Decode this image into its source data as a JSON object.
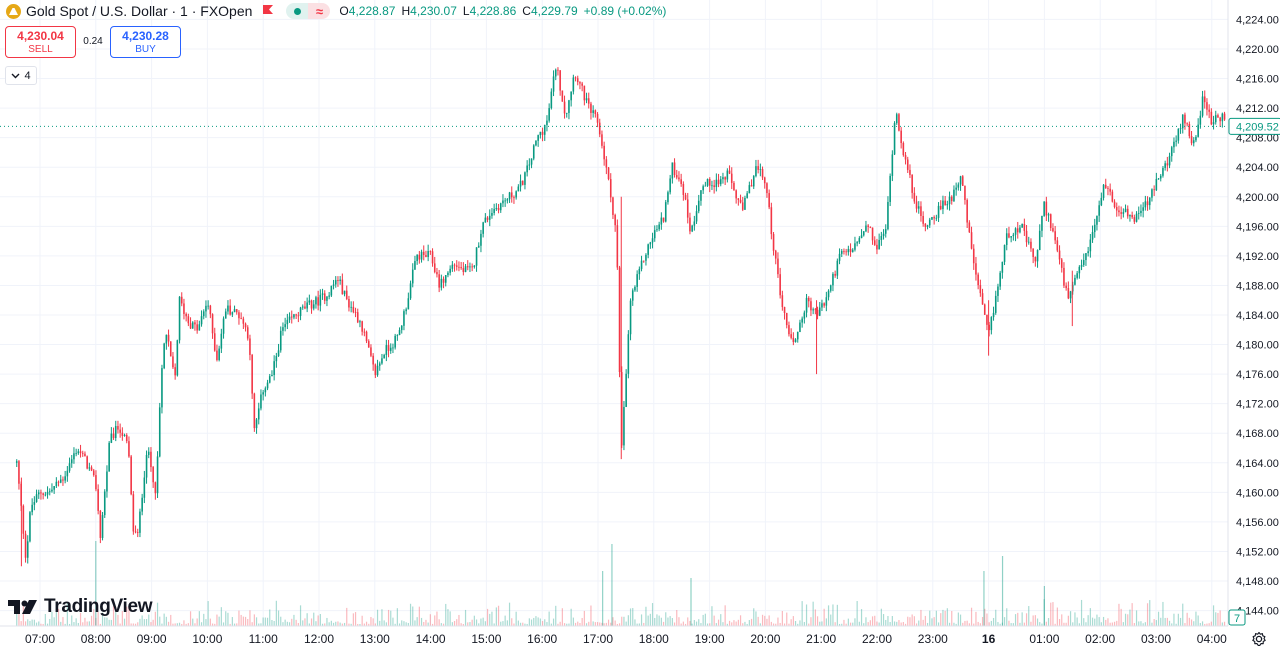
{
  "header": {
    "symbol_title": "Gold Spot / U.S. Dollar · 1 · FXOpen",
    "ohlc": {
      "o_label": "O",
      "o_value": "4,228.87",
      "h_label": "H",
      "h_value": "4,230.07",
      "l_label": "L",
      "l_value": "4,228.86",
      "c_label": "C",
      "c_value": "4,229.79",
      "change": "+0.89 (+0.02%)"
    },
    "icons": [
      "gold-coin-icon",
      "flag-icon",
      "market-open-dot-icon",
      "delayed-data-wave-icon"
    ]
  },
  "trade": {
    "sell_price": "4,230.04",
    "sell_label": "SELL",
    "spread": "0.24",
    "buy_price": "4,230.28",
    "buy_label": "BUY"
  },
  "indicators_toggle": {
    "count": "4"
  },
  "branding": {
    "logo_text": "TradingView"
  },
  "colors": {
    "up": "#089981",
    "down": "#f23645",
    "grid": "#f0f3fa",
    "axis_text": "#131722",
    "price_tag": "#089981"
  },
  "chart_data": {
    "type": "candlestick",
    "title": "Gold Spot / U.S. Dollar · 1 · FXOpen",
    "xlabel": "",
    "ylabel": "",
    "x_ticks": [
      "07:00",
      "08:00",
      "09:00",
      "10:00",
      "11:00",
      "12:00",
      "13:00",
      "14:00",
      "15:00",
      "16:00",
      "17:00",
      "18:00",
      "19:00",
      "20:00",
      "21:00",
      "22:00",
      "23:00",
      "16",
      "01:00",
      "02:00",
      "03:00",
      "04:00"
    ],
    "y_ticks": [
      "4,144.00",
      "4,148.00",
      "4,152.00",
      "4,156.00",
      "4,160.00",
      "4,164.00",
      "4,168.00",
      "4,172.00",
      "4,176.00",
      "4,180.00",
      "4,184.00",
      "4,188.00",
      "4,192.00",
      "4,196.00",
      "4,200.00",
      "4,204.00",
      "4,208.00",
      "4,212.00",
      "4,216.00",
      "4,220.00",
      "4,224.00"
    ],
    "ylim": [
      4143.0,
      4225.0
    ],
    "grid": true,
    "last_price_label": "4,209.52",
    "last_price": 4209.52,
    "volume_badge": "7",
    "series_path": [
      [
        "06:35",
        4164
      ],
      [
        "06:45",
        4151
      ],
      [
        "06:50",
        4158
      ],
      [
        "07:00",
        4160
      ],
      [
        "07:10",
        4160
      ],
      [
        "07:25",
        4162
      ],
      [
        "07:40",
        4166
      ],
      [
        "07:50",
        4164
      ],
      [
        "08:00",
        4161
      ],
      [
        "08:05",
        4154
      ],
      [
        "08:15",
        4167
      ],
      [
        "08:25",
        4169
      ],
      [
        "08:35",
        4166
      ],
      [
        "08:40",
        4155
      ],
      [
        "08:45",
        4154
      ],
      [
        "08:55",
        4166
      ],
      [
        "09:05",
        4160
      ],
      [
        "09:10",
        4175
      ],
      [
        "09:15",
        4182
      ],
      [
        "09:25",
        4175
      ],
      [
        "09:30",
        4186
      ],
      [
        "09:40",
        4183
      ],
      [
        "09:50",
        4182
      ],
      [
        "10:00",
        4186
      ],
      [
        "10:10",
        4178
      ],
      [
        "10:20",
        4185
      ],
      [
        "10:35",
        4184
      ],
      [
        "10:45",
        4181
      ],
      [
        "10:50",
        4168
      ],
      [
        "11:00",
        4174
      ],
      [
        "11:10",
        4176
      ],
      [
        "11:20",
        4182
      ],
      [
        "11:35",
        4184
      ],
      [
        "11:45",
        4185
      ],
      [
        "12:00",
        4186
      ],
      [
        "12:10",
        4187
      ],
      [
        "12:20",
        4189
      ],
      [
        "12:30",
        4186
      ],
      [
        "12:45",
        4183
      ],
      [
        "13:00",
        4176
      ],
      [
        "13:10",
        4179
      ],
      [
        "13:25",
        4181
      ],
      [
        "13:35",
        4186
      ],
      [
        "13:45",
        4192
      ],
      [
        "14:00",
        4192
      ],
      [
        "14:10",
        4188
      ],
      [
        "14:25",
        4191
      ],
      [
        "14:35",
        4190
      ],
      [
        "14:45",
        4190
      ],
      [
        "14:55",
        4196
      ],
      [
        "15:05",
        4198
      ],
      [
        "15:15",
        4199
      ],
      [
        "15:25",
        4200
      ],
      [
        "15:35",
        4201
      ],
      [
        "15:45",
        4204
      ],
      [
        "15:55",
        4208
      ],
      [
        "16:05",
        4210
      ],
      [
        "16:15",
        4218
      ],
      [
        "16:25",
        4211
      ],
      [
        "16:35",
        4217
      ],
      [
        "16:50",
        4212
      ],
      [
        "17:00",
        4210
      ],
      [
        "17:10",
        4203
      ],
      [
        "17:20",
        4195
      ],
      [
        "17:25",
        4165
      ],
      [
        "17:35",
        4186
      ],
      [
        "17:50",
        4192
      ],
      [
        "18:00",
        4195
      ],
      [
        "18:10",
        4197
      ],
      [
        "18:20",
        4204
      ],
      [
        "18:30",
        4202
      ],
      [
        "18:40",
        4195
      ],
      [
        "18:50",
        4201
      ],
      [
        "19:00",
        4202
      ],
      [
        "19:10",
        4202
      ],
      [
        "19:20",
        4203
      ],
      [
        "19:35",
        4198
      ],
      [
        "19:50",
        4204
      ],
      [
        "20:00",
        4202
      ],
      [
        "20:10",
        4192
      ],
      [
        "20:20",
        4184
      ],
      [
        "20:30",
        4180
      ],
      [
        "20:45",
        4186
      ],
      [
        "20:55",
        4184
      ],
      [
        "21:05",
        4186
      ],
      [
        "21:20",
        4192
      ],
      [
        "21:35",
        4193
      ],
      [
        "21:50",
        4196
      ],
      [
        "22:00",
        4193
      ],
      [
        "22:10",
        4196
      ],
      [
        "22:20",
        4212
      ],
      [
        "22:30",
        4205
      ],
      [
        "22:40",
        4200
      ],
      [
        "22:50",
        4196
      ],
      [
        "23:05",
        4198
      ],
      [
        "23:20",
        4200
      ],
      [
        "23:30",
        4203
      ],
      [
        "23:40",
        4194
      ],
      [
        "23:50",
        4187
      ],
      [
        "00:00",
        4181
      ],
      [
        "00:10",
        4188
      ],
      [
        "00:20",
        4195
      ],
      [
        "00:35",
        4196
      ],
      [
        "00:50",
        4191
      ],
      [
        "01:00",
        4199
      ],
      [
        "01:10",
        4195
      ],
      [
        "01:25",
        4186
      ],
      [
        "01:35",
        4189
      ],
      [
        "01:50",
        4194
      ],
      [
        "02:05",
        4202
      ],
      [
        "02:15",
        4199
      ],
      [
        "02:35",
        4197
      ],
      [
        "02:50",
        4199
      ],
      [
        "03:05",
        4203
      ],
      [
        "03:20",
        4207
      ],
      [
        "03:30",
        4211
      ],
      [
        "03:40",
        4207
      ],
      [
        "03:50",
        4213
      ],
      [
        "04:00",
        4210
      ],
      [
        "04:10",
        4211
      ],
      [
        "04:15",
        4209.5
      ]
    ],
    "volume": {
      "note_scale": "relative",
      "spikes": [
        [
          "08:00",
          0.85
        ],
        [
          "17:05",
          0.55
        ],
        [
          "17:15",
          0.82
        ],
        [
          "18:40",
          0.48
        ],
        [
          "23:55",
          0.55
        ],
        [
          "00:15",
          0.7
        ],
        [
          "01:00",
          0.4
        ]
      ]
    }
  }
}
